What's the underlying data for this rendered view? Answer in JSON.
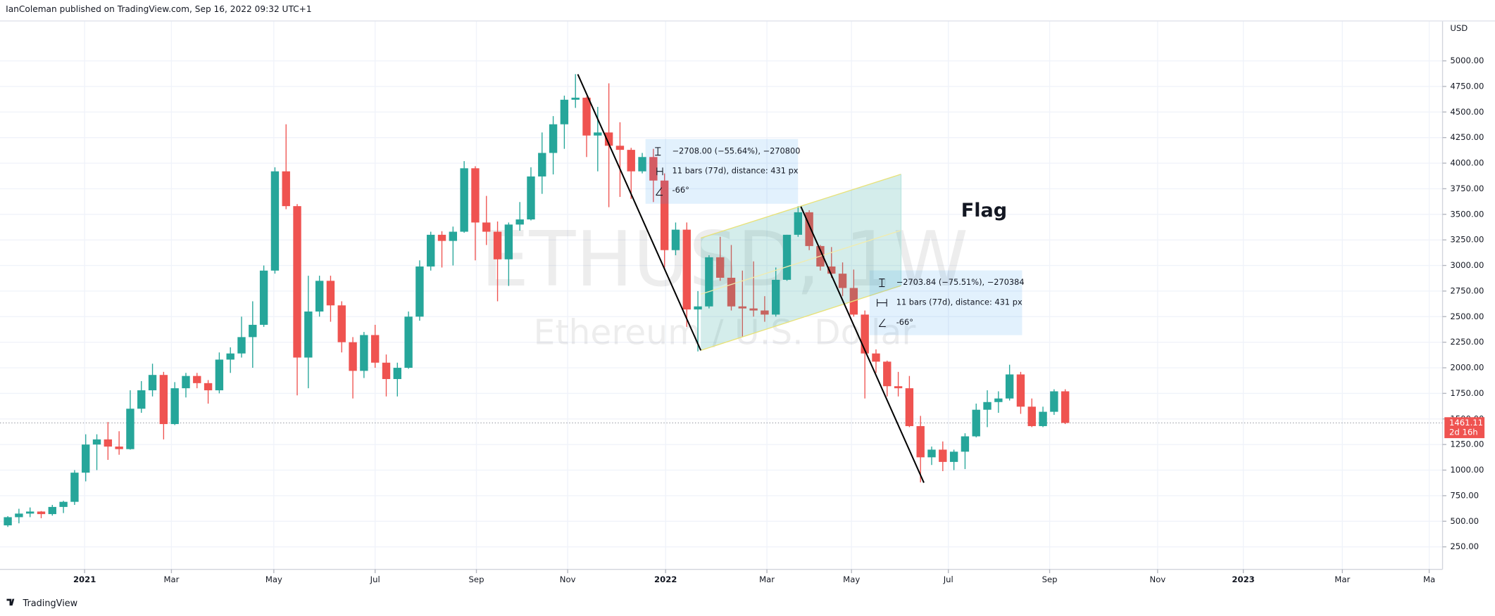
{
  "header": "IanColeman published on TradingView.com, Sep 16, 2022 09:32 UTC+1",
  "footer": "TradingView",
  "chart_data": {
    "type": "candlestick",
    "symbol_watermark": "ETHUSD, 1W",
    "description_watermark": "Ethereum / U.S. Dollar",
    "currency": "USD",
    "up_color": "#26a69a",
    "down_color": "#ef5350",
    "open": [
      460,
      540,
      575,
      595,
      570,
      640,
      690,
      975,
      1250,
      1300,
      1230,
      1205,
      1600,
      1780,
      1930,
      1450,
      1800,
      1920,
      1850,
      1780,
      2080,
      2140,
      2300,
      2420,
      2950,
      3920,
      3580,
      2100,
      2550,
      2850,
      2610,
      2250,
      1970,
      2320,
      2050,
      1890,
      2000,
      2500,
      2990,
      3300,
      3240,
      3330,
      3950,
      3420,
      3330,
      3060,
      3400,
      3450,
      3870,
      4100,
      4380,
      4620,
      4640,
      4270,
      4300,
      4170,
      4130,
      3920,
      4060,
      3830,
      3150,
      3350,
      2570,
      2600,
      3080,
      2880,
      2600,
      2580,
      2560,
      2520,
      2860,
      3300,
      3520,
      3190,
      2990,
      2920,
      2780,
      2520,
      2140,
      2060,
      1820,
      1800,
      1430,
      1125,
      1200,
      1080,
      1180,
      1330,
      1590,
      1665,
      1700,
      1935,
      1620,
      1430,
      1570,
      1770
    ],
    "high": [
      550,
      622,
      635,
      600,
      660,
      700,
      1000,
      1350,
      1350,
      1470,
      1380,
      1780,
      1870,
      2040,
      1960,
      1860,
      1950,
      1950,
      1880,
      2150,
      2200,
      2500,
      2650,
      3000,
      3960,
      4380,
      3600,
      2900,
      2900,
      2900,
      2650,
      2300,
      2350,
      2420,
      2130,
      2050,
      2550,
      3050,
      3330,
      3335,
      3380,
      4020,
      3970,
      3680,
      3430,
      3420,
      3620,
      3960,
      4300,
      4460,
      4660,
      4870,
      4650,
      4550,
      4780,
      4400,
      4150,
      4100,
      4140,
      3900,
      3420,
      3420,
      2750,
      3100,
      3280,
      3200,
      2950,
      3040,
      2700,
      2980,
      3300,
      3580,
      3540,
      3200,
      3180,
      3030,
      2960,
      2560,
      2180,
      2070,
      1960,
      1920,
      1530,
      1230,
      1280,
      1200,
      1360,
      1650,
      1780,
      1770,
      2030,
      1960,
      1700,
      1620,
      1790,
      1790
    ],
    "low": [
      445,
      480,
      540,
      530,
      555,
      580,
      660,
      890,
      1000,
      1100,
      1150,
      1200,
      1560,
      1720,
      1300,
      1440,
      1710,
      1800,
      1650,
      1750,
      1950,
      2100,
      2000,
      2400,
      2920,
      3550,
      1730,
      1800,
      2500,
      2450,
      2150,
      1700,
      1900,
      2000,
      1720,
      1720,
      1990,
      2460,
      2950,
      2980,
      3000,
      3320,
      3050,
      3200,
      2650,
      2800,
      3340,
      3440,
      3700,
      3890,
      4140,
      4540,
      4060,
      3920,
      3570,
      3670,
      3650,
      3900,
      3620,
      2980,
      3100,
      2400,
      2160,
      2580,
      2850,
      2560,
      2300,
      2500,
      2450,
      2500,
      2850,
      3280,
      3150,
      2950,
      2880,
      2700,
      2500,
      1700,
      1950,
      1720,
      1720,
      1420,
      880,
      1050,
      990,
      1000,
      1010,
      1320,
      1420,
      1560,
      1680,
      1550,
      1420,
      1420,
      1540,
      1450
    ],
    "close": [
      540,
      575,
      595,
      570,
      640,
      690,
      975,
      1250,
      1300,
      1230,
      1205,
      1600,
      1780,
      1930,
      1450,
      1800,
      1920,
      1850,
      1780,
      2080,
      2140,
      2300,
      2420,
      2950,
      3920,
      3580,
      2100,
      2550,
      2850,
      2610,
      2250,
      1970,
      2320,
      2050,
      1890,
      2000,
      2500,
      2990,
      3300,
      3240,
      3330,
      3950,
      3420,
      3330,
      3060,
      3400,
      3450,
      3870,
      4100,
      4380,
      4620,
      4640,
      4270,
      4300,
      4170,
      4130,
      3920,
      4060,
      3830,
      3150,
      3350,
      2570,
      2600,
      3080,
      2880,
      2600,
      2580,
      2560,
      2520,
      2860,
      3300,
      3520,
      3190,
      2990,
      2920,
      2780,
      2520,
      2140,
      2060,
      1820,
      1800,
      1430,
      1125,
      1200,
      1080,
      1180,
      1330,
      1590,
      1665,
      1700,
      1935,
      1620,
      1430,
      1570,
      1770,
      1461.11
    ],
    "xlim": [
      -0.7,
      128.9
    ],
    "xticks": [
      {
        "value": 6.9,
        "label": "2021"
      },
      {
        "value": 14.7,
        "label": "Mar"
      },
      {
        "value": 23.9,
        "label": "May"
      },
      {
        "value": 33.0,
        "label": "Jul"
      },
      {
        "value": 42.1,
        "label": "Sep"
      },
      {
        "value": 50.3,
        "label": "Nov"
      },
      {
        "value": 59.1,
        "label": "2022"
      },
      {
        "value": 68.2,
        "label": "Mar"
      },
      {
        "value": 75.8,
        "label": "May"
      },
      {
        "value": 84.5,
        "label": "Jul"
      },
      {
        "value": 93.6,
        "label": "Sep"
      },
      {
        "value": 103.3,
        "label": "Nov"
      },
      {
        "value": 111.0,
        "label": "2023"
      },
      {
        "value": 119.9,
        "label": "Mar"
      },
      {
        "value": 127.7,
        "label": "Ma"
      }
    ],
    "ylim": [
      30,
      5390
    ],
    "yticks": [
      {
        "value": 250,
        "label": "250.00"
      },
      {
        "value": 500,
        "label": "500.00"
      },
      {
        "value": 750,
        "label": "750.00"
      },
      {
        "value": 1000,
        "label": "1000.00"
      },
      {
        "value": 1250,
        "label": "1250.00"
      },
      {
        "value": 1500,
        "label": "1500.00"
      },
      {
        "value": 1750,
        "label": "1750.00"
      },
      {
        "value": 2000,
        "label": "2000.00"
      },
      {
        "value": 2250,
        "label": "2250.00"
      },
      {
        "value": 2500,
        "label": "2500.00"
      },
      {
        "value": 2750,
        "label": "2750.00"
      },
      {
        "value": 3000,
        "label": "3000.00"
      },
      {
        "value": 3250,
        "label": "3250.00"
      },
      {
        "value": 3500,
        "label": "3500.00"
      },
      {
        "value": 3750,
        "label": "3750.00"
      },
      {
        "value": 4000,
        "label": "4000.00"
      },
      {
        "value": 4250,
        "label": "4250.00"
      },
      {
        "value": 4500,
        "label": "4500.00"
      },
      {
        "value": 4750,
        "label": "4750.00"
      },
      {
        "value": 5000,
        "label": "5000.00"
      }
    ],
    "grid": true,
    "last_price": 1461.11,
    "countdown": "2d 16h",
    "annotations": {
      "flag": "Flag",
      "measures": [
        [
          "−2708.00 (−55.64%), −270800",
          "11 bars (77d), distance: 431 px",
          "-66°"
        ],
        [
          "−2703.84 (−75.51%), −270384",
          "11 bars (77d), distance: 431 px",
          "-66°"
        ]
      ]
    }
  }
}
